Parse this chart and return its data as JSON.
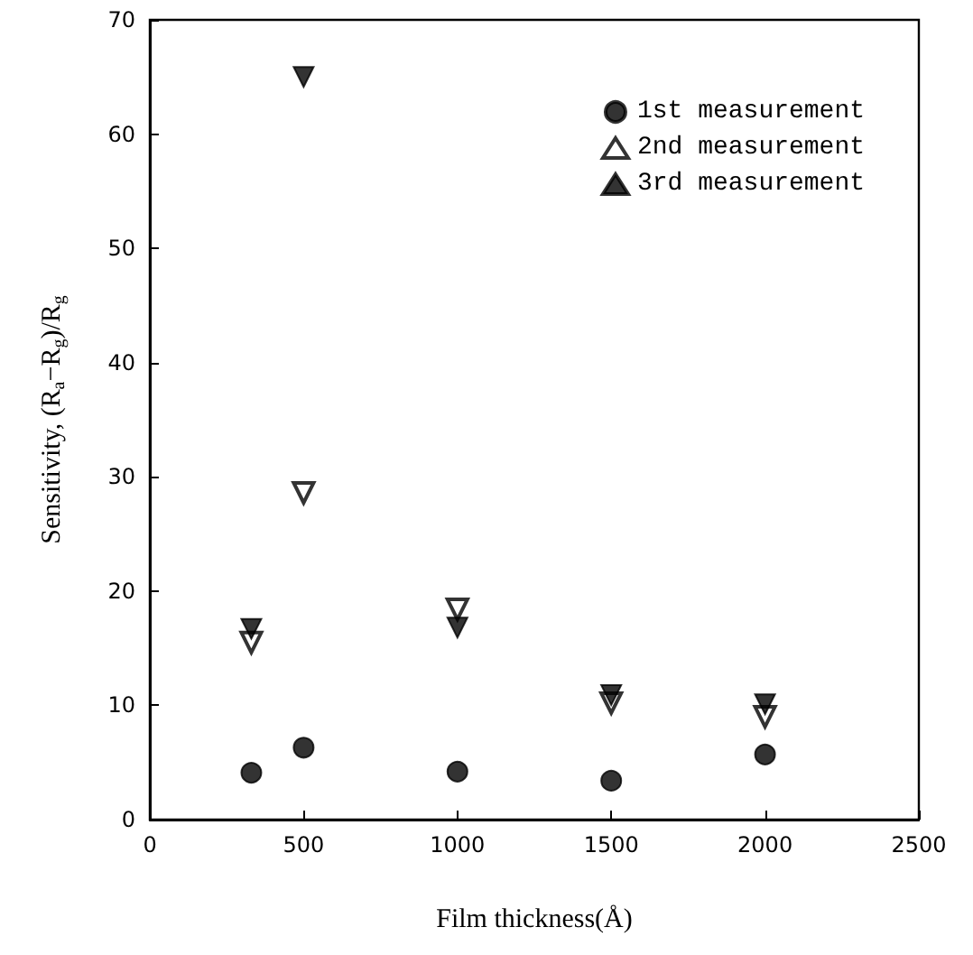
{
  "chart_data": {
    "type": "scatter",
    "xlabel": "Film thickness(Å)",
    "ylabel": "Sensitivity, (R$_{a}$−R$_{g}$)/R$_{g}$",
    "x": [
      330,
      500,
      1000,
      1500,
      2000
    ],
    "series": [
      {
        "name": "1st measurement",
        "color": "#000000",
        "marker": "circle",
        "values": [
          4.1,
          6.3,
          4.2,
          3.4,
          5.7
        ]
      },
      {
        "name": "2nd measurement",
        "color": "#000000",
        "marker": "triangle-down-open",
        "values": [
          15.5,
          28.6,
          18.4,
          10.2,
          9.0
        ]
      },
      {
        "name": "3rd measurement",
        "color": "#000000",
        "marker": "triangle-down",
        "values": [
          16.7,
          65.0,
          16.8,
          10.9,
          10.1
        ]
      }
    ],
    "xlim": [
      0,
      2500
    ],
    "xticks": [
      0,
      500,
      1000,
      1500,
      2000,
      2500
    ],
    "ylim": [
      0,
      70
    ],
    "yticks": [
      0,
      10,
      20,
      30,
      40,
      50,
      60,
      70
    ],
    "legend": "top right",
    "grid": false
  }
}
